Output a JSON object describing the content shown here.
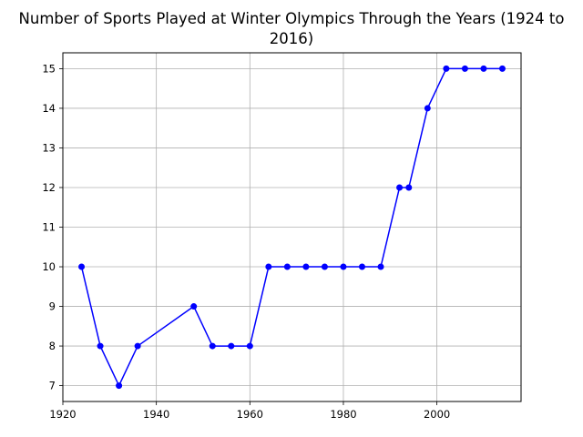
{
  "chart_data": {
    "type": "line",
    "title_lines": [
      "Number of Sports Played at Winter Olympics Through the Years (1924 to",
      "2016)"
    ],
    "xlabel": "",
    "ylabel": "",
    "xlim": [
      1920,
      2018
    ],
    "ylim": [
      6.6,
      15.4
    ],
    "x_ticks": [
      1920,
      1940,
      1960,
      1980,
      2000
    ],
    "y_ticks": [
      7,
      8,
      9,
      10,
      11,
      12,
      13,
      14,
      15
    ],
    "grid": true,
    "series": [
      {
        "color": "#0000ff",
        "marker": "circle",
        "x": [
          1924,
          1928,
          1932,
          1936,
          1948,
          1952,
          1956,
          1960,
          1964,
          1968,
          1972,
          1976,
          1980,
          1984,
          1988,
          1992,
          1994,
          1998,
          2002,
          2006,
          2010,
          2014
        ],
        "values": [
          10,
          8,
          7,
          8,
          9,
          8,
          8,
          8,
          10,
          10,
          10,
          10,
          10,
          10,
          10,
          12,
          12,
          14,
          15,
          15,
          15,
          15
        ]
      }
    ]
  }
}
